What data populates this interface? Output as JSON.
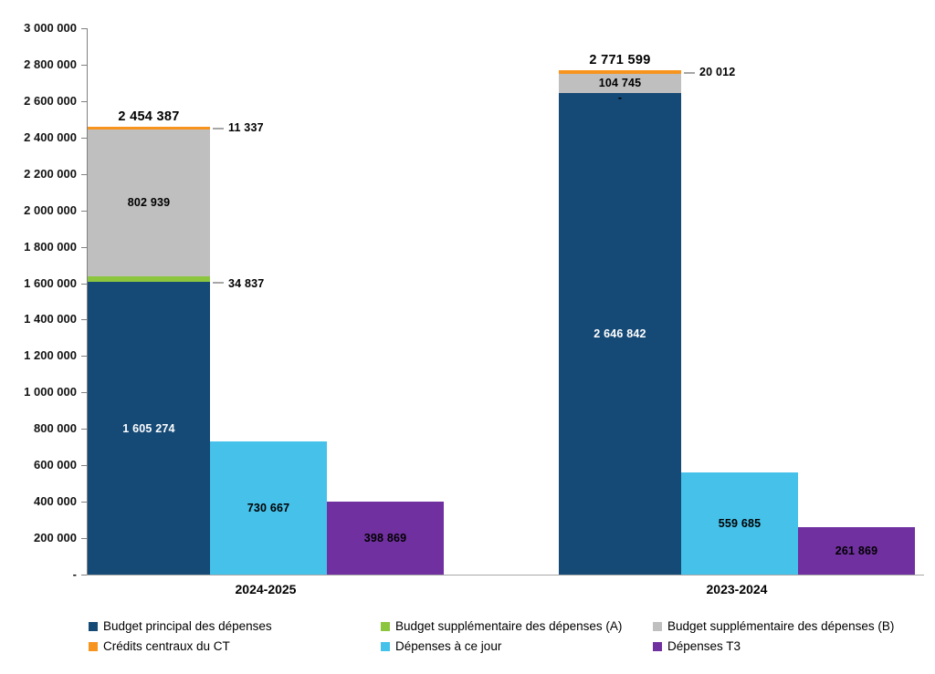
{
  "chart_data": {
    "type": "bar",
    "variant": "stacked-plus-clustered",
    "title": "",
    "categories": [
      "2024-2025",
      "2023-2024"
    ],
    "y_axis": {
      "min": 0,
      "max": 3000000,
      "step": 200000,
      "ticks": [
        {
          "label": "3 000 000",
          "value": 3000000
        },
        {
          "label": "2 800 000",
          "value": 2800000
        },
        {
          "label": "2 600 000",
          "value": 2600000
        },
        {
          "label": "2 400 000",
          "value": 2400000
        },
        {
          "label": "2 200 000",
          "value": 2200000
        },
        {
          "label": "2 000 000",
          "value": 2000000
        },
        {
          "label": "1 800 000",
          "value": 1800000
        },
        {
          "label": "1 600 000",
          "value": 1600000
        },
        {
          "label": "1 400 000",
          "value": 1400000
        },
        {
          "label": "1 200 000",
          "value": 1200000
        },
        {
          "label": "1 000 000",
          "value": 1000000
        },
        {
          "label": "800 000",
          "value": 800000
        },
        {
          "label": "600 000",
          "value": 600000
        },
        {
          "label": "400 000",
          "value": 400000
        },
        {
          "label": "200 000",
          "value": 200000
        },
        {
          "label": "-",
          "value": 0
        }
      ]
    },
    "series": [
      {
        "name": "Budget principal des dépenses",
        "color": "#164A76",
        "type": "stacked",
        "values": [
          1605274,
          2646842
        ],
        "labels": [
          "1 605 274",
          "2 646 842"
        ],
        "label_placements": [
          "inside",
          "inside"
        ],
        "label_color": "#FFFFFF"
      },
      {
        "name": "Budget supplémentaire des dépenses (A)",
        "color": "#8CC63F",
        "type": "stacked",
        "values": [
          34837,
          0
        ],
        "labels": [
          "34 837",
          "-"
        ],
        "label_placements": [
          "callout",
          "inside"
        ],
        "label_color": "#000000"
      },
      {
        "name": "Budget supplémentaire des dépenses (B)",
        "color": "#BFBFBF",
        "type": "stacked",
        "values": [
          802939,
          104745
        ],
        "labels": [
          "802 939",
          "104 745"
        ],
        "label_placements": [
          "inside",
          "inside"
        ],
        "label_color": "#000000"
      },
      {
        "name": "Crédits centraux du CT",
        "color": "#F7941E",
        "type": "stacked",
        "values": [
          11337,
          20012
        ],
        "labels": [
          "11 337",
          "20 012"
        ],
        "label_placements": [
          "callout",
          "callout"
        ],
        "label_color": "#000000"
      },
      {
        "name": "Dépenses à ce jour",
        "color": "#45C1EA",
        "type": "bar",
        "values": [
          730667,
          559685
        ],
        "labels": [
          "730 667",
          "559 685"
        ],
        "label_placements": [
          "inside",
          "inside"
        ],
        "label_color": "#000000"
      },
      {
        "name": "Dépenses T3",
        "color": "#7030A0",
        "type": "bar",
        "values": [
          398869,
          261869
        ],
        "labels": [
          "398 869",
          "261 869"
        ],
        "label_placements": [
          "inside",
          "inside"
        ],
        "label_color": "#000000"
      }
    ],
    "stack_totals": {
      "values": [
        2454387,
        2771599
      ],
      "labels": [
        "2 454 387",
        "2 771 599"
      ]
    },
    "legend": {
      "position": "bottom",
      "rows": 2,
      "columns": 3
    },
    "grid": false,
    "axis_color": "#808080",
    "leader_line_color": "#A6A6A6",
    "baseline_color": "#A6A6A6"
  }
}
